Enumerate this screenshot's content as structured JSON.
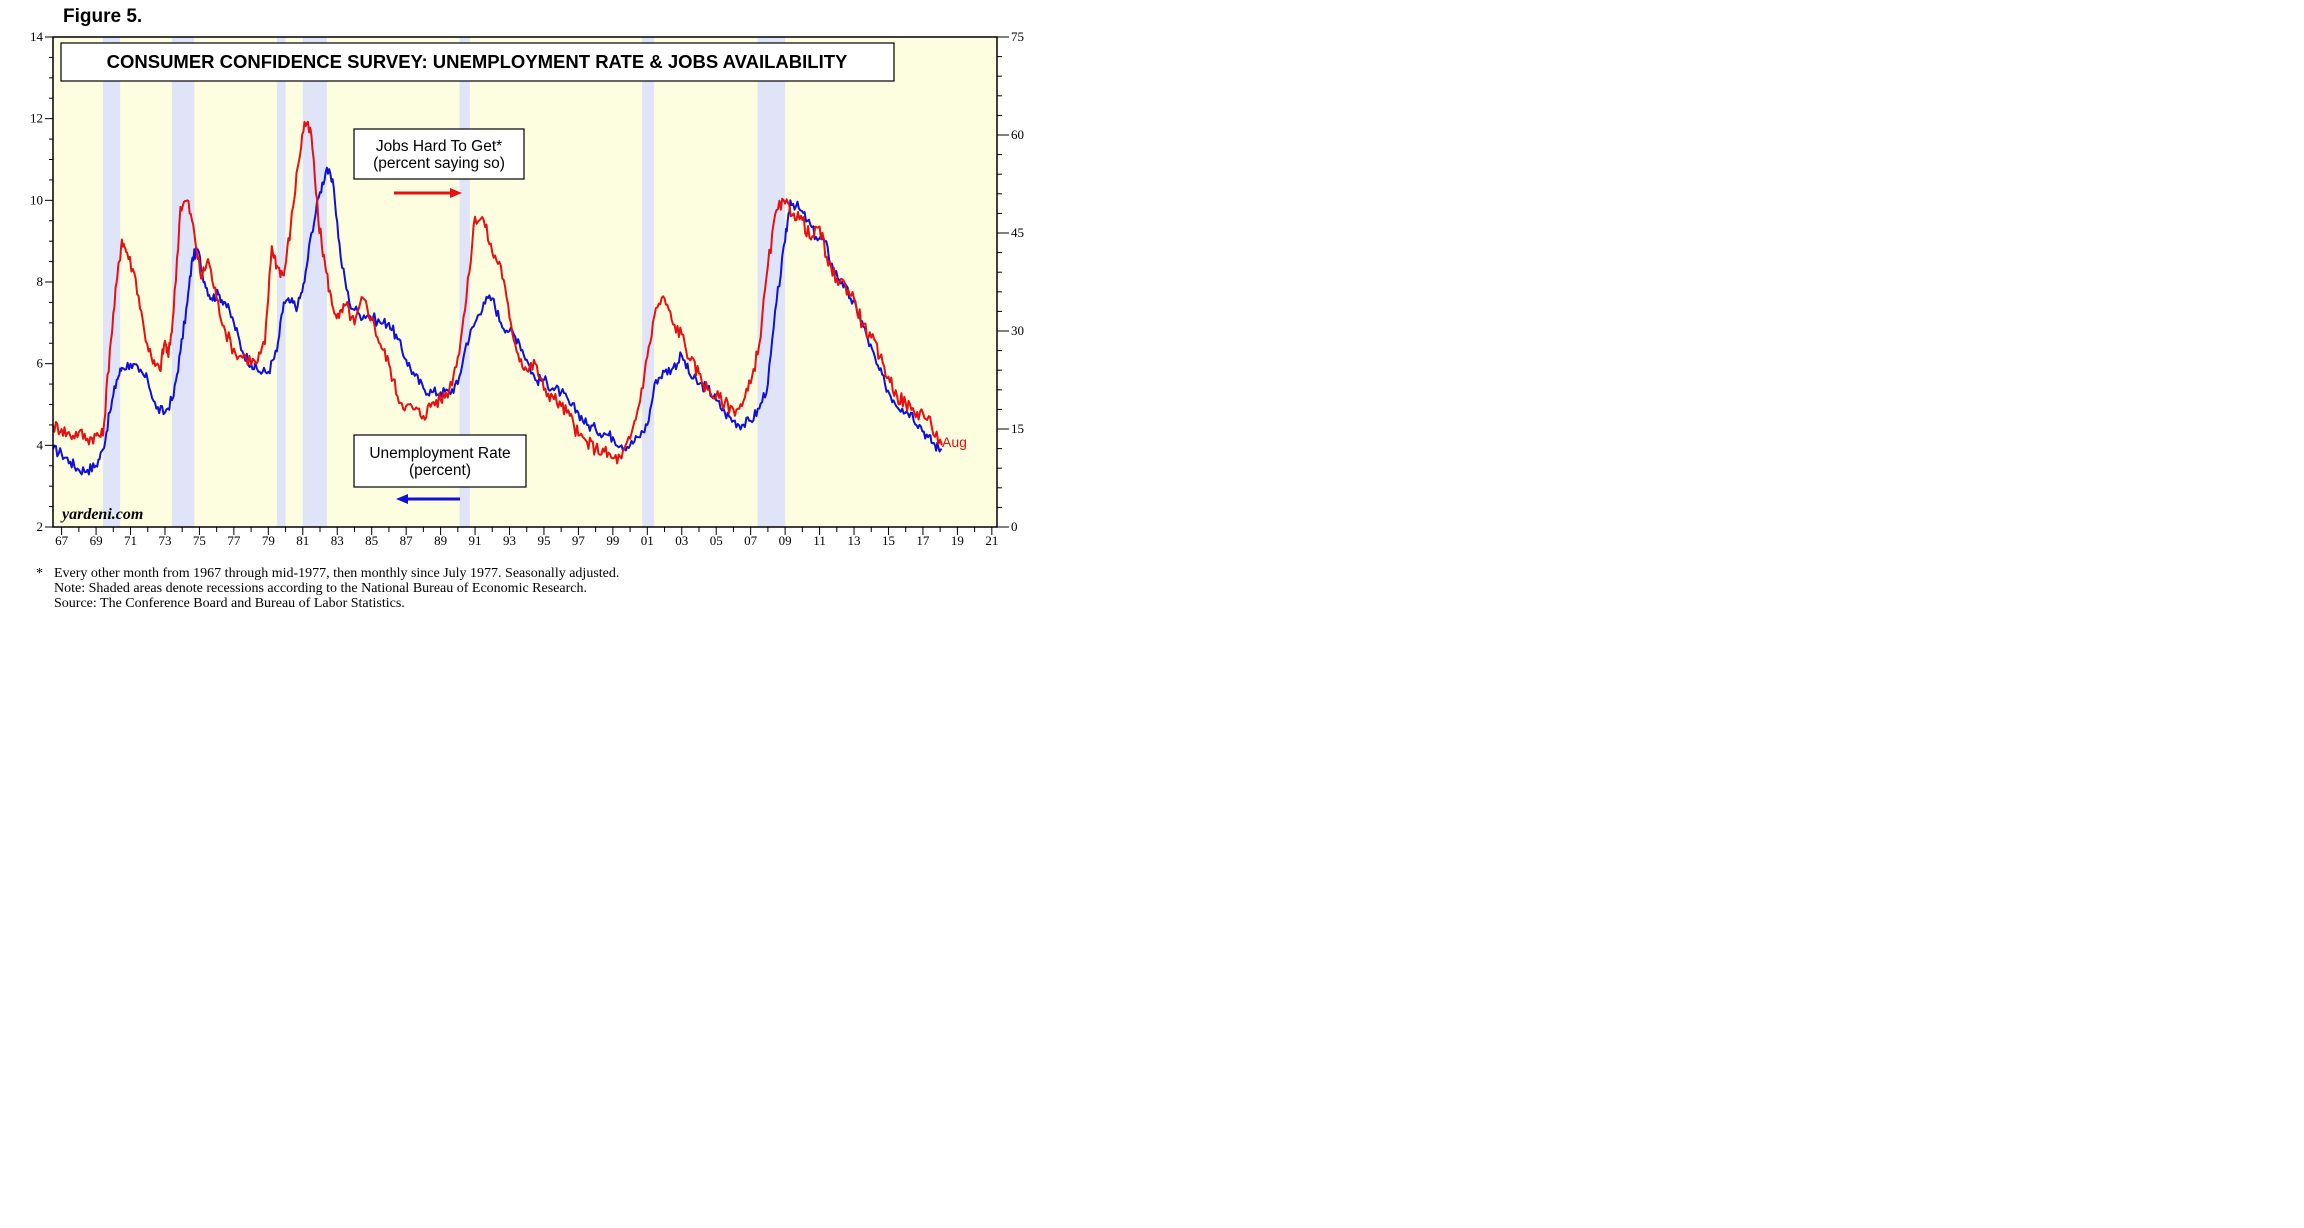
{
  "figure_label": "Figure 5.",
  "chart_data": {
    "type": "line",
    "title": "CONSUMER CONFIDENCE SURVEY: UNEMPLOYMENT RATE & JOBS AVAILABILITY",
    "watermark": "yardeni.com",
    "x_tick_labels": [
      "67",
      "69",
      "71",
      "73",
      "75",
      "77",
      "79",
      "81",
      "83",
      "85",
      "87",
      "89",
      "91",
      "93",
      "95",
      "97",
      "99",
      "01",
      "03",
      "05",
      "07",
      "09",
      "11",
      "13",
      "15",
      "17",
      "19",
      "21"
    ],
    "xlim": [
      1967,
      2021.8
    ],
    "left_axis": {
      "ticks": [
        2,
        4,
        6,
        8,
        10,
        12,
        14
      ],
      "ylim": [
        2,
        14
      ]
    },
    "right_axis": {
      "ticks": [
        0,
        15,
        30,
        45,
        60,
        75
      ],
      "ylim": [
        0,
        75
      ]
    },
    "grid": false,
    "background_color": "#fdfde0",
    "recession_color": "#e0e4f8",
    "recessions": [
      [
        1969.9,
        1970.9
      ],
      [
        1973.9,
        1975.2
      ],
      [
        1980.0,
        1980.5
      ],
      [
        1981.5,
        1982.9
      ],
      [
        1990.6,
        1991.2
      ],
      [
        2001.2,
        2001.9
      ],
      [
        2007.9,
        2009.5
      ]
    ],
    "end_label": "Aug",
    "series": [
      {
        "label_lines": [
          "Jobs Hard To Get*",
          "(percent saying so)"
        ],
        "axis": "right",
        "arrow": "right",
        "color": "#e61010",
        "x": [
          1967.0,
          1967.5,
          1968.0,
          1968.5,
          1969.0,
          1969.5,
          1969.9,
          1970.3,
          1970.7,
          1971.0,
          1971.3,
          1971.8,
          1972.3,
          1972.8,
          1973.2,
          1973.5,
          1973.7,
          1974.0,
          1974.4,
          1974.8,
          1975.2,
          1975.6,
          1976.0,
          1976.5,
          1977.0,
          1977.6,
          1978.2,
          1978.8,
          1979.3,
          1979.7,
          1980.0,
          1980.4,
          1980.8,
          1981.2,
          1981.6,
          1982.0,
          1982.4,
          1982.8,
          1983.2,
          1983.6,
          1984.0,
          1984.5,
          1985.0,
          1985.5,
          1986.0,
          1986.5,
          1987.0,
          1987.5,
          1988.0,
          1988.5,
          1989.0,
          1989.5,
          1990.0,
          1990.5,
          1991.0,
          1991.5,
          1992.0,
          1992.5,
          1993.0,
          1993.5,
          1994.0,
          1994.5,
          1995.0,
          1995.5,
          1996.0,
          1996.5,
          1997.0,
          1997.5,
          1998.0,
          1998.5,
          1999.0,
          1999.5,
          2000.0,
          2000.5,
          2001.0,
          2001.5,
          2002.0,
          2002.5,
          2003.0,
          2003.5,
          2004.0,
          2004.5,
          2005.0,
          2005.5,
          2006.0,
          2006.5,
          2007.0,
          2007.5,
          2008.0,
          2008.5,
          2009.0,
          2009.5,
          2010.0,
          2010.5,
          2011.0,
          2011.5,
          2012.0,
          2012.5,
          2013.0,
          2013.5,
          2014.0,
          2014.5,
          2015.0,
          2015.5,
          2016.0,
          2016.5,
          2017.0,
          2017.5,
          2018.0,
          2018.6
        ],
        "values": [
          15.5,
          15.0,
          14.0,
          14.5,
          13.5,
          14.0,
          14.0,
          27.0,
          37.5,
          44.0,
          42.0,
          38.0,
          30.0,
          25.0,
          24.0,
          28.5,
          26.0,
          33.0,
          49.0,
          50.0,
          45.0,
          38.0,
          41.0,
          35.0,
          30.0,
          26.5,
          26.0,
          25.0,
          28.0,
          43.0,
          40.0,
          38.5,
          46.0,
          55.0,
          62.0,
          60.0,
          47.0,
          40.0,
          34.0,
          32.0,
          34.0,
          31.0,
          35.0,
          32.0,
          28.0,
          25.0,
          20.0,
          18.5,
          18.0,
          17.0,
          19.0,
          19.5,
          21.0,
          26.0,
          35.0,
          47.5,
          47.0,
          42.0,
          40.0,
          32.0,
          26.5,
          24.0,
          25.0,
          21.0,
          20.0,
          18.5,
          17.0,
          14.0,
          13.0,
          12.0,
          11.5,
          10.5,
          10.5,
          13.5,
          18.5,
          26.0,
          33.5,
          35.0,
          31.0,
          29.5,
          25.5,
          23.5,
          21.0,
          20.0,
          19.0,
          18.0,
          18.5,
          22.0,
          28.0,
          40.0,
          48.5,
          49.5,
          48.0,
          47.0,
          44.0,
          46.0,
          40.0,
          38.0,
          37.0,
          35.0,
          31.0,
          29.0,
          26.0,
          23.0,
          20.0,
          19.0,
          17.5,
          17.5,
          15.5,
          12.5
        ]
      },
      {
        "label_lines": [
          "Unemployment Rate",
          "(percent)"
        ],
        "axis": "left",
        "arrow": "left",
        "color": "#1010d8",
        "x": [
          1967.0,
          1967.5,
          1968.0,
          1968.5,
          1969.0,
          1969.5,
          1969.9,
          1970.3,
          1970.7,
          1971.0,
          1971.5,
          1972.0,
          1972.5,
          1973.0,
          1973.5,
          1974.0,
          1974.4,
          1974.8,
          1975.1,
          1975.4,
          1975.8,
          1976.2,
          1976.6,
          1977.0,
          1977.5,
          1978.0,
          1978.5,
          1979.0,
          1979.5,
          1980.0,
          1980.4,
          1980.8,
          1981.2,
          1981.6,
          1982.0,
          1982.5,
          1982.9,
          1983.3,
          1983.7,
          1984.2,
          1984.8,
          1985.3,
          1986.0,
          1986.5,
          1987.0,
          1987.5,
          1988.0,
          1988.5,
          1989.0,
          1989.5,
          1990.0,
          1990.5,
          1991.0,
          1991.5,
          1992.0,
          1992.5,
          1993.0,
          1993.5,
          1994.0,
          1994.5,
          1995.0,
          1995.5,
          1996.0,
          1996.5,
          1997.0,
          1997.5,
          1998.0,
          1998.5,
          1999.0,
          1999.5,
          2000.0,
          2000.5,
          2001.0,
          2001.5,
          2002.0,
          2002.5,
          2003.0,
          2003.5,
          2004.0,
          2004.5,
          2005.0,
          2005.5,
          2006.0,
          2006.5,
          2007.0,
          2007.5,
          2008.0,
          2008.5,
          2009.0,
          2009.5,
          2009.8,
          2010.3,
          2010.8,
          2011.3,
          2011.8,
          2012.3,
          2012.8,
          2013.3,
          2013.8,
          2014.3,
          2014.8,
          2015.3,
          2015.8,
          2016.3,
          2016.8,
          2017.3,
          2017.8,
          2018.2,
          2018.6
        ],
        "values": [
          3.9,
          3.8,
          3.6,
          3.4,
          3.4,
          3.5,
          3.9,
          4.8,
          5.6,
          5.9,
          6.0,
          5.8,
          5.6,
          4.9,
          4.8,
          5.2,
          6.3,
          7.5,
          8.6,
          8.8,
          8.0,
          7.6,
          7.7,
          7.5,
          7.0,
          6.3,
          6.0,
          5.8,
          5.8,
          6.3,
          7.5,
          7.5,
          7.4,
          8.0,
          9.2,
          10.2,
          10.8,
          10.3,
          8.6,
          7.5,
          7.2,
          7.2,
          7.0,
          7.0,
          6.6,
          6.1,
          5.7,
          5.4,
          5.3,
          5.3,
          5.3,
          5.5,
          6.5,
          7.0,
          7.5,
          7.6,
          7.0,
          6.8,
          6.6,
          6.1,
          5.6,
          5.6,
          5.4,
          5.3,
          5.0,
          4.8,
          4.5,
          4.4,
          4.3,
          4.2,
          4.0,
          4.0,
          4.2,
          4.5,
          5.6,
          5.8,
          5.9,
          6.2,
          5.7,
          5.5,
          5.4,
          5.1,
          4.8,
          4.6,
          4.5,
          4.6,
          4.9,
          5.5,
          7.5,
          9.0,
          10.0,
          9.8,
          9.5,
          9.1,
          9.0,
          8.3,
          8.0,
          7.6,
          7.2,
          6.6,
          6.0,
          5.5,
          5.1,
          4.9,
          4.8,
          4.5,
          4.2,
          4.0,
          3.9
        ]
      }
    ]
  },
  "footnotes": {
    "star": "*",
    "line1": "Every other month from 1967 through mid-1977, then monthly since July 1977. Seasonally adjusted.",
    "line2": "Note: Shaded areas denote recessions according to the National Bureau of Economic Research.",
    "line3": "Source: The Conference Board and Bureau of Labor Statistics."
  }
}
